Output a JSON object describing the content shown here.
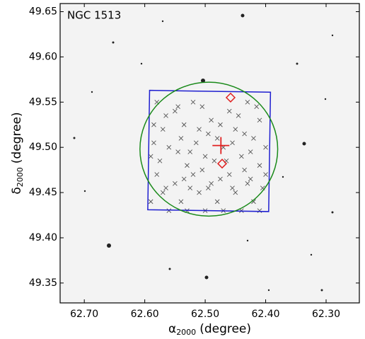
{
  "chart_data": {
    "type": "scatter",
    "annotation": "NGC 1513",
    "xlabel": {
      "symbol": "α",
      "subscript": "2000",
      "unit": "(degree)"
    },
    "ylabel": {
      "symbol": "δ",
      "subscript": "2000",
      "unit": "(degree)"
    },
    "xlim": [
      62.74,
      62.245
    ],
    "ylim": [
      49.328,
      49.659
    ],
    "xticks": [
      {
        "value": 62.7,
        "label": "62.70"
      },
      {
        "value": 62.6,
        "label": "62.60"
      },
      {
        "value": 62.5,
        "label": "62.50"
      },
      {
        "value": 62.4,
        "label": "62.40"
      },
      {
        "value": 62.3,
        "label": "62.30"
      }
    ],
    "yticks": [
      49.35,
      {
        "value": 49.4,
        "label": "49.40"
      },
      49.45,
      {
        "value": 49.5,
        "label": "49.50"
      },
      49.55,
      {
        "value": 49.6,
        "label": "49.60"
      },
      49.65
    ],
    "members": {
      "color": "#555555",
      "x": [
        62.58,
        62.55,
        62.52,
        62.49,
        62.46,
        62.43,
        62.41,
        62.57,
        62.54,
        62.51,
        62.48,
        62.45,
        62.42,
        62.4,
        62.59,
        62.56,
        62.53,
        62.5,
        62.47,
        62.44,
        62.41,
        62.58,
        62.55,
        62.52,
        62.49,
        62.46,
        62.43,
        62.4,
        62.57,
        62.54,
        62.51,
        62.48,
        62.45,
        62.42,
        62.41,
        62.59,
        62.56,
        62.53,
        62.5,
        62.47,
        62.44,
        62.565,
        62.535,
        62.505,
        62.475,
        62.445,
        62.415,
        62.585,
        62.545,
        62.515,
        62.485,
        62.455,
        62.425,
        62.575,
        62.535,
        62.505,
        62.465,
        62.435,
        62.405,
        62.565,
        62.525,
        62.495,
        62.455,
        62.425,
        62.585,
        62.545,
        62.435,
        62.495,
        62.475,
        62.525
      ],
      "y": [
        49.55,
        49.54,
        49.55,
        49.53,
        49.54,
        49.55,
        49.53,
        49.52,
        49.51,
        49.52,
        49.51,
        49.52,
        49.51,
        49.5,
        49.49,
        49.5,
        49.48,
        49.49,
        49.5,
        49.49,
        49.48,
        49.47,
        49.46,
        49.47,
        49.46,
        49.47,
        49.46,
        49.47,
        49.45,
        49.44,
        49.45,
        49.44,
        49.45,
        49.44,
        49.43,
        49.44,
        49.43,
        49.43,
        49.43,
        49.43,
        49.43,
        49.535,
        49.525,
        49.545,
        49.525,
        49.535,
        49.545,
        49.505,
        49.495,
        49.505,
        49.485,
        49.505,
        49.495,
        49.485,
        49.465,
        49.475,
        49.485,
        49.475,
        49.455,
        49.455,
        49.455,
        49.455,
        49.455,
        49.465,
        49.525,
        49.545,
        49.515,
        49.515,
        49.465,
        49.495
      ]
    },
    "field": {
      "color": "#1f1fd0",
      "x": [
        62.592,
        62.392,
        62.395,
        62.595
      ],
      "y": [
        49.563,
        49.561,
        49.429,
        49.431
      ]
    },
    "cluster_circle": {
      "color": "#1a8a1a",
      "x": 62.494,
      "y": 49.498,
      "radius": 0.074
    },
    "center": {
      "color": "#e02020",
      "x": 62.474,
      "y": 49.502
    },
    "highlighted": {
      "color": "#e02020",
      "x": [
        62.458,
        62.472
      ],
      "y": [
        49.555,
        49.482
      ]
    }
  }
}
